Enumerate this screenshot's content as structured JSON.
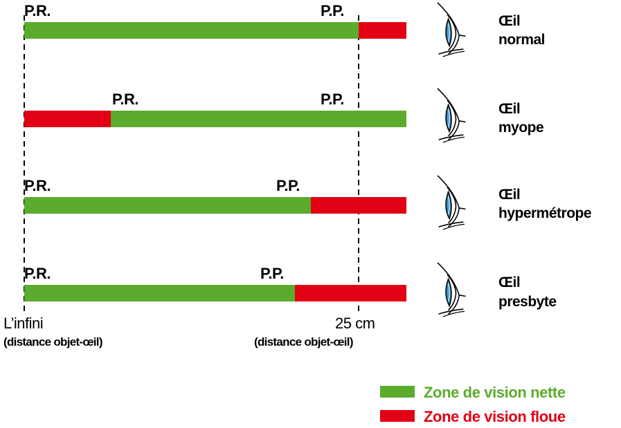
{
  "colors": {
    "net": "#5bac2d",
    "flou": "#e20015",
    "line": "#000000",
    "eye_iris": "#3a8fc2"
  },
  "rows": [
    {
      "id": "normal",
      "eye_line1": "Œil",
      "eye_line2": "normal",
      "pr_label": "P.R.",
      "pp_label": "P.P.",
      "zones": [
        "net",
        "flou"
      ]
    },
    {
      "id": "myope",
      "eye_line1": "Œil",
      "eye_line2": "myope",
      "pr_label": "P.R.",
      "pp_label": "P.P.",
      "zones": [
        "flou",
        "net"
      ]
    },
    {
      "id": "hypermetrope",
      "eye_line1": "Œil",
      "eye_line2": "hypermétrope",
      "pr_label": "P.R.",
      "pp_label": "P.P.",
      "zones": [
        "net",
        "flou"
      ]
    },
    {
      "id": "presbyte",
      "eye_line1": "Œil",
      "eye_line2": "presbyte",
      "pr_label": "P.R.",
      "pp_label": "P.P.",
      "zones": [
        "net",
        "flou"
      ]
    }
  ],
  "axis": {
    "left_main": "L’infini",
    "left_sub": "(distance objet-œil)",
    "right_main": "25 cm",
    "right_sub": "(distance objet-œil)"
  },
  "legend": [
    {
      "label": "Zone de vision nette",
      "color": "#5bac2d"
    },
    {
      "label": "Zone de vision floue",
      "color": "#e20015"
    }
  ]
}
